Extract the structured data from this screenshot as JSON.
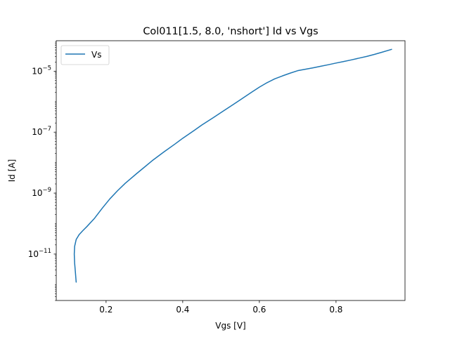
{
  "chart_data": {
    "type": "line",
    "title": "Col011[1.5, 8.0, 'nshort'] Id vs Vgs",
    "xlabel": "Vgs [V]",
    "ylabel": "Id [A]",
    "xscale": "linear",
    "yscale": "log",
    "xlim": [
      0.07,
      0.98
    ],
    "ylim": [
      3e-13,
      0.0001
    ],
    "xticks": [
      0.2,
      0.4,
      0.6,
      0.8
    ],
    "xtick_labels": [
      "0.2",
      "0.4",
      "0.6",
      "0.8"
    ],
    "yticks": [
      {
        "value": 1e-11,
        "base": "10",
        "exp": "−11"
      },
      {
        "value": 1e-09,
        "base": "10",
        "exp": "−9"
      },
      {
        "value": 1e-07,
        "base": "10",
        "exp": "−7"
      },
      {
        "value": 1e-05,
        "base": "10",
        "exp": "−5"
      }
    ],
    "grid": false,
    "legend_position": "upper-left",
    "series": [
      {
        "name": "Vs",
        "color": "#1f77b4",
        "x": [
          0.122,
          0.12,
          0.118,
          0.117,
          0.118,
          0.122,
          0.13,
          0.14,
          0.15,
          0.17,
          0.19,
          0.21,
          0.23,
          0.25,
          0.28,
          0.3,
          0.32,
          0.35,
          0.38,
          0.4,
          0.43,
          0.45,
          0.48,
          0.5,
          0.53,
          0.55,
          0.58,
          0.6,
          0.62,
          0.64,
          0.66,
          0.68,
          0.7,
          0.72,
          0.74,
          0.76,
          0.78,
          0.8,
          0.82,
          0.84,
          0.86,
          0.88,
          0.9,
          0.92,
          0.945
        ],
        "y": [
          1.2e-12,
          2.5e-12,
          5e-12,
          1e-11,
          1.8e-11,
          3e-11,
          4.4e-11,
          6e-11,
          8e-11,
          1.5e-10,
          3.2e-10,
          6.5e-10,
          1.2e-09,
          2.1e-09,
          4.4e-09,
          7.1e-09,
          1.15e-08,
          2.2e-08,
          4.1e-08,
          6.3e-08,
          1.14e-07,
          1.72e-07,
          3e-07,
          4.4e-07,
          7.8e-07,
          1.15e-06,
          2.05e-06,
          3e-06,
          4.2e-06,
          5.6e-06,
          7e-06,
          8.6e-06,
          1.04e-05,
          1.16e-05,
          1.29e-05,
          1.45e-05,
          1.63e-05,
          1.85e-05,
          2.08e-05,
          2.35e-05,
          2.68e-05,
          3.05e-05,
          3.55e-05,
          4.2e-05,
          5.2e-05
        ]
      }
    ]
  }
}
